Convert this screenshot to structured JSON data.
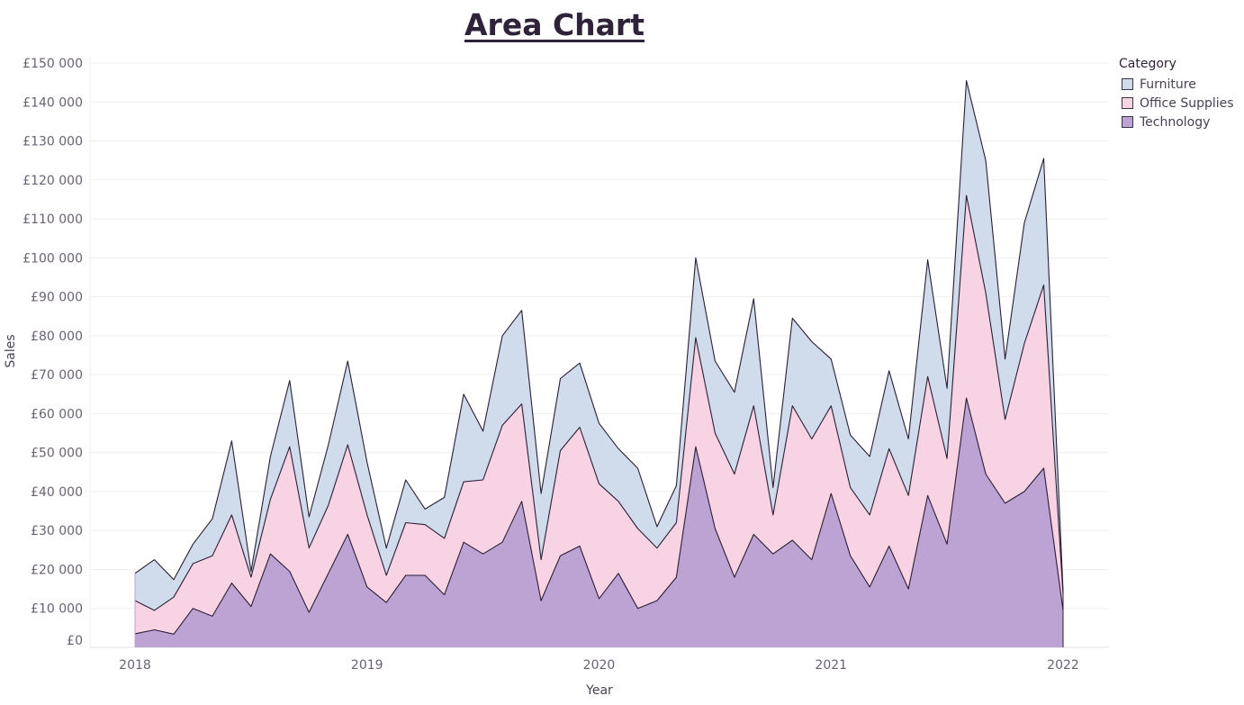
{
  "chart_data": {
    "type": "area",
    "stacked": true,
    "title": "Area Chart",
    "xlabel": "Year",
    "ylabel": "Sales",
    "x_ticks": [
      "2018",
      "2019",
      "2020",
      "2021",
      "2022"
    ],
    "y_ticks": [
      "£0",
      "£10 000",
      "£20 000",
      "£30 000",
      "£40 000",
      "£50 000",
      "£60 000",
      "£70 000",
      "£80 000",
      "£90 000",
      "£100 000",
      "£110 000",
      "£120 000",
      "£130 000",
      "£140 000",
      "£150 000"
    ],
    "ylim": [
      0,
      150000
    ],
    "xlim": [
      "2017-11",
      "2022-02"
    ],
    "x": [
      "2018-01",
      "2018-02",
      "2018-03",
      "2018-04",
      "2018-05",
      "2018-06",
      "2018-07",
      "2018-08",
      "2018-09",
      "2018-10",
      "2018-11",
      "2018-12",
      "2019-01",
      "2019-02",
      "2019-03",
      "2019-04",
      "2019-05",
      "2019-06",
      "2019-07",
      "2019-08",
      "2019-09",
      "2019-10",
      "2019-11",
      "2019-12",
      "2020-01",
      "2020-02",
      "2020-03",
      "2020-04",
      "2020-05",
      "2020-06",
      "2020-07",
      "2020-08",
      "2020-09",
      "2020-10",
      "2020-11",
      "2020-12",
      "2021-01",
      "2021-02",
      "2021-03",
      "2021-04",
      "2021-05",
      "2021-06",
      "2021-07",
      "2021-08",
      "2021-09",
      "2021-10",
      "2021-11",
      "2021-12",
      "2022-01"
    ],
    "grid": true,
    "legend_position": "top-right",
    "legend_title": "Category",
    "series": [
      {
        "name": "Technology",
        "color": "#bda2d4",
        "values": [
          3500,
          4500,
          3400,
          10000,
          8000,
          16500,
          10500,
          24000,
          19500,
          9000,
          19000,
          29000,
          15500,
          11500,
          18500,
          18500,
          13500,
          27000,
          24000,
          27000,
          37500,
          12000,
          23500,
          26000,
          12500,
          19000,
          10000,
          12000,
          18000,
          51500,
          30500,
          18000,
          29000,
          24000,
          27500,
          22500,
          39500,
          23500,
          15500,
          26000,
          15000,
          39000,
          26500,
          64000,
          44500,
          37000,
          40000,
          46000,
          9500
        ]
      },
      {
        "name": "Office Supplies",
        "color": "#f8d3e4",
        "values": [
          8500,
          5000,
          9500,
          11500,
          15500,
          17500,
          7500,
          14000,
          32000,
          16500,
          17500,
          23000,
          18500,
          7000,
          13500,
          13000,
          14500,
          15500,
          19000,
          30000,
          25000,
          10500,
          27000,
          30500,
          29500,
          18500,
          20500,
          13500,
          14000,
          28000,
          24500,
          26500,
          33000,
          10000,
          34500,
          31000,
          22500,
          17500,
          18500,
          25000,
          24000,
          30500,
          22000,
          52000,
          46500,
          21500,
          38000,
          47000,
          4000
        ]
      },
      {
        "name": "Furniture",
        "color": "#d0dbec",
        "values": [
          7000,
          13000,
          4500,
          5000,
          9500,
          19000,
          1500,
          11000,
          17000,
          8000,
          15500,
          21500,
          13500,
          7000,
          11000,
          4000,
          10500,
          22500,
          12500,
          23000,
          24000,
          17000,
          18500,
          16500,
          15500,
          13500,
          15500,
          5500,
          9500,
          20500,
          18500,
          21000,
          27500,
          7000,
          22500,
          25000,
          12000,
          13500,
          15000,
          20000,
          14500,
          30000,
          18000,
          29500,
          34000,
          15500,
          31000,
          32500,
          1000
        ]
      }
    ]
  }
}
